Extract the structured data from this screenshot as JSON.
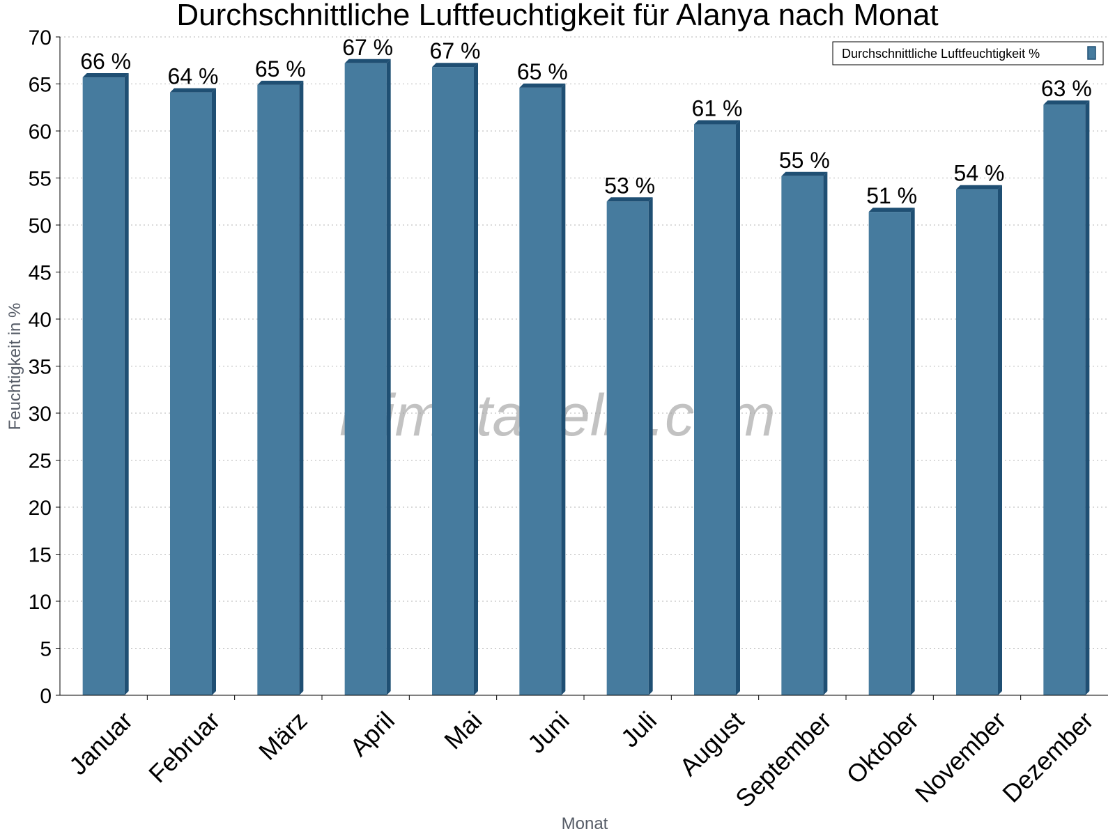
{
  "chart_data": {
    "type": "bar",
    "title": "Durchschnittliche Luftfeuchtigkeit für Alanya nach Monat",
    "xlabel": "Monat",
    "ylabel": "Feuchtigkeit in %",
    "ylim": [
      0,
      70
    ],
    "yticks": [
      0,
      5,
      10,
      15,
      20,
      25,
      30,
      35,
      40,
      45,
      50,
      55,
      60,
      65,
      70
    ],
    "grid": true,
    "legend_position": "top-right",
    "categories": [
      "Januar",
      "Februar",
      "März",
      "April",
      "Mai",
      "Juni",
      "Juli",
      "August",
      "September",
      "Oktober",
      "November",
      "Dezember"
    ],
    "series": [
      {
        "name": "Durchschnittliche Luftfeuchtigkeit %",
        "values": [
          65.7,
          64.1,
          64.9,
          67.2,
          66.8,
          64.6,
          52.5,
          60.7,
          55.2,
          51.4,
          53.8,
          62.8
        ],
        "labels": [
          "66 %",
          "64 %",
          "65 %",
          "67 %",
          "67 %",
          "65 %",
          "53 %",
          "61 %",
          "55 %",
          "51 %",
          "54 %",
          "63 %"
        ],
        "color": "#467b9e",
        "side_color": "#1f4f73"
      }
    ],
    "watermark": "klimatabelle.com"
  }
}
